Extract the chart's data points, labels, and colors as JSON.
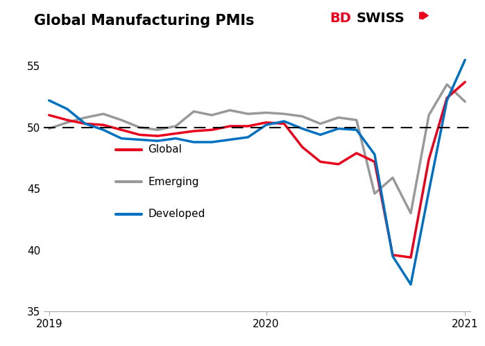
{
  "title": "Global Manufacturing PMIs",
  "ylim": [
    35,
    57
  ],
  "yticks": [
    35,
    40,
    45,
    50,
    55
  ],
  "reference_line": 50,
  "line_width": 2.5,
  "background_color": "#ffffff",
  "series": {
    "Global": {
      "color": "#e8001c",
      "data": [
        51.0,
        50.6,
        50.3,
        50.2,
        49.8,
        49.4,
        49.3,
        49.5,
        49.7,
        49.8,
        50.1,
        50.1,
        50.4,
        50.3,
        48.4,
        47.2,
        47.0,
        47.9,
        47.2,
        39.6,
        39.4,
        47.4,
        52.4,
        53.7
      ]
    },
    "Emerging": {
      "color": "#999999",
      "data": [
        49.9,
        50.4,
        50.8,
        51.1,
        50.6,
        50.0,
        49.8,
        50.1,
        51.3,
        51.0,
        51.4,
        51.1,
        51.2,
        51.1,
        50.9,
        50.3,
        50.8,
        50.6,
        44.6,
        45.9,
        43.0,
        51.0,
        53.5,
        52.1
      ]
    },
    "Developed": {
      "color": "#0070c0",
      "data": [
        52.2,
        51.5,
        50.3,
        49.8,
        49.1,
        49.0,
        48.9,
        49.1,
        48.8,
        48.8,
        49.0,
        49.2,
        50.2,
        50.5,
        49.9,
        49.4,
        49.9,
        49.8,
        47.8,
        39.5,
        37.2,
        44.8,
        52.2,
        55.5
      ]
    }
  },
  "n_months": 24,
  "xtick_positions": [
    0,
    12,
    23
  ],
  "xtick_labels": [
    "2019",
    "2020",
    "2021"
  ],
  "legend_entries": [
    "Global",
    "Emerging",
    "Developed"
  ],
  "legend_colors": [
    "#e8001c",
    "#999999",
    "#0070c0"
  ],
  "logo_bd_color": "#e8001c",
  "logo_swiss_color": "#000000",
  "logo_arrow_color": "#e8001c"
}
